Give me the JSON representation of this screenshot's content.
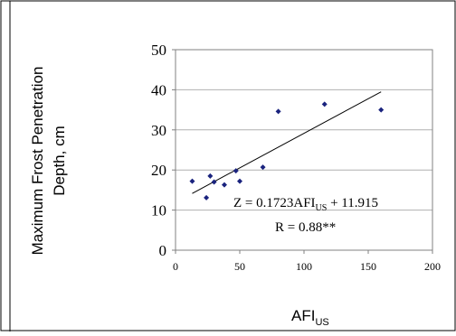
{
  "chart_data": {
    "type": "scatter",
    "ylabel_line1": "Maximum Frost Penetration",
    "ylabel_line2": "Depth, cm",
    "xlabel_main": "AFI",
    "xlabel_sub": "US",
    "xlim": [
      0,
      200
    ],
    "ylim": [
      0,
      50
    ],
    "x_ticks": [
      0,
      50,
      100,
      150,
      200
    ],
    "y_ticks": [
      0,
      10,
      20,
      30,
      40,
      50
    ],
    "grid": "horizontal",
    "points": [
      {
        "x": 13,
        "y": 17.2
      },
      {
        "x": 24,
        "y": 13.1
      },
      {
        "x": 27,
        "y": 18.5
      },
      {
        "x": 30,
        "y": 17.0
      },
      {
        "x": 38,
        "y": 16.3
      },
      {
        "x": 47,
        "y": 19.8
      },
      {
        "x": 50,
        "y": 17.2
      },
      {
        "x": 68,
        "y": 20.7
      },
      {
        "x": 80,
        "y": 34.6
      },
      {
        "x": 116,
        "y": 36.4
      },
      {
        "x": 160,
        "y": 35.0
      }
    ],
    "trendline": {
      "x": [
        13,
        160
      ],
      "slope": 0.1723,
      "intercept": 11.915
    },
    "equation_prefix": "Z = 0.1723AFI",
    "equation_sub": "US",
    "equation_suffix": " + 11.915",
    "r_text": "R = 0.88**",
    "colors": {
      "marker": "#1a237e",
      "line": "#000000",
      "grid": "#b0b0b0",
      "axis": "#808080"
    }
  }
}
